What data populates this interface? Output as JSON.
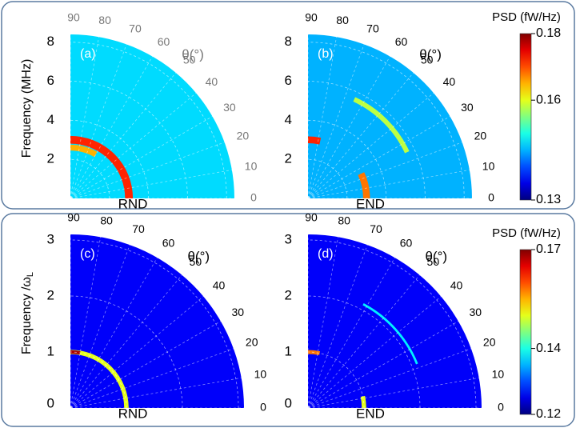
{
  "chart_data": [
    {
      "type": "polar-heatmap",
      "panel": "(a)",
      "xlabel": "RND",
      "ylabel": "Frequency (MHz)",
      "theta_label": "θ(°)",
      "tick_color": "#777777",
      "rlim": [
        0,
        8.4
      ],
      "rticks": [
        2,
        4,
        6,
        8
      ],
      "thetaticks": [
        90,
        80,
        70,
        60,
        50,
        40,
        30,
        20,
        10,
        0
      ],
      "fill_level": 0.147,
      "rings": [
        {
          "r": 3.0,
          "from": 0,
          "to": 90,
          "level": 0.172,
          "width": 0.4
        },
        {
          "r": 2.6,
          "from": 60,
          "to": 90,
          "level": 0.165,
          "width": 0.3
        }
      ],
      "colorbar": {
        "title": "PSD (fW/Hz)",
        "lim": [
          0.13,
          0.18
        ],
        "ticks": [
          0.18,
          0.16,
          0.13
        ]
      }
    },
    {
      "type": "polar-heatmap",
      "panel": "(b)",
      "xlabel": "END",
      "theta_label": "θ(°)",
      "tick_color": "#000000",
      "rlim": [
        0,
        8.4
      ],
      "rticks": [
        2,
        4,
        6,
        8
      ],
      "thetaticks": [
        90,
        80,
        70,
        60,
        50,
        40,
        30,
        20,
        10,
        0
      ],
      "fill_level": 0.145,
      "rings": [
        {
          "r": 3.0,
          "from": 0,
          "to": 25,
          "level": 0.168,
          "width": 0.35
        },
        {
          "r": 3.0,
          "from": 78,
          "to": 90,
          "level": 0.172,
          "width": 0.35
        },
        {
          "r": 5.6,
          "from": 25,
          "to": 65,
          "level": 0.158,
          "width": 0.25
        }
      ]
    },
    {
      "type": "polar-heatmap",
      "panel": "(c)",
      "xlabel": "RND",
      "ylabel": "Frequency /ω",
      "ylabel_sub": "L",
      "theta_label": "θ(°)",
      "tick_color": "#000000",
      "rlim": [
        0,
        3.1
      ],
      "rticks": [
        0,
        1,
        2,
        3
      ],
      "thetaticks": [
        90,
        80,
        70,
        60,
        50,
        40,
        30,
        20,
        10,
        0
      ],
      "fill_level": 0.126,
      "rings": [
        {
          "r": 1.0,
          "from": 0,
          "to": 90,
          "level": 0.15,
          "width": 0.08
        },
        {
          "r": 1.0,
          "from": 80,
          "to": 90,
          "level": 0.168,
          "width": 0.06
        }
      ],
      "colorbar": {
        "title": "PSD (fW/Hz)",
        "lim": [
          0.12,
          0.17
        ],
        "ticks": [
          0.17,
          0.14,
          0.12
        ]
      }
    },
    {
      "type": "polar-heatmap",
      "panel": "(d)",
      "xlabel": "END",
      "theta_label": "θ(°)",
      "tick_color": "#000000",
      "rlim": [
        0,
        3.1
      ],
      "rticks": [
        0,
        1,
        2,
        3
      ],
      "thetaticks": [
        90,
        80,
        70,
        60,
        50,
        40,
        30,
        20,
        10,
        0
      ],
      "fill_level": 0.126,
      "rings": [
        {
          "r": 1.0,
          "from": 0,
          "to": 12,
          "level": 0.15,
          "width": 0.08
        },
        {
          "r": 1.0,
          "from": 78,
          "to": 90,
          "level": 0.158,
          "width": 0.07
        },
        {
          "r": 2.1,
          "from": 22,
          "to": 62,
          "level": 0.138,
          "width": 0.04
        }
      ]
    }
  ]
}
